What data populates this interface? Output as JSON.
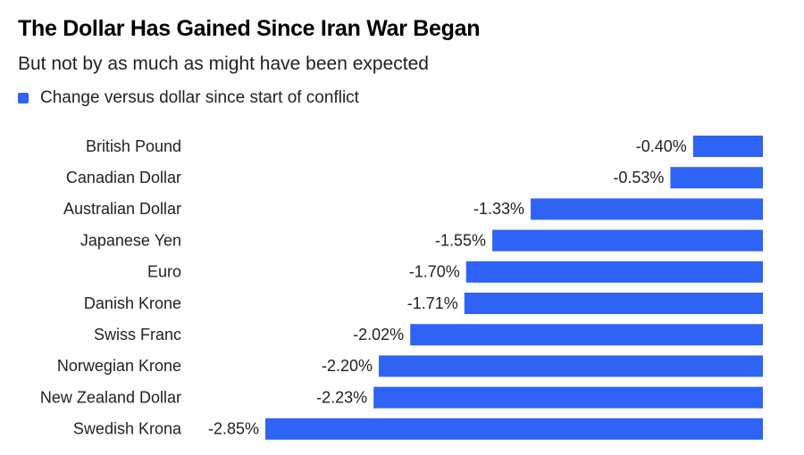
{
  "chart_data": {
    "type": "bar",
    "orientation": "horizontal",
    "title": "The Dollar Has Gained Since Iran War Began",
    "subtitle": "But not by as much as might have been expected",
    "legend": {
      "label": "Change versus dollar since start of conflict",
      "color": "#2f63f6",
      "placement": "top-left"
    },
    "categories": [
      "British Pound",
      "Canadian Dollar",
      "Australian Dollar",
      "Japanese Yen",
      "Euro",
      "Danish Krone",
      "Swiss Franc",
      "Norwegian Krone",
      "New Zealand Dollar",
      "Swedish Krona"
    ],
    "values": [
      -0.4,
      -0.53,
      -1.33,
      -1.55,
      -1.7,
      -1.71,
      -2.02,
      -2.2,
      -2.23,
      -2.85
    ],
    "value_labels": [
      "-0.40%",
      "-0.53%",
      "-1.33%",
      "-1.55%",
      "-1.70%",
      "-1.71%",
      "-2.02%",
      "-2.20%",
      "-2.23%",
      "-2.85%"
    ],
    "xlim": [
      -2.85,
      0
    ],
    "grid": false,
    "bar_color": "#2f63f6"
  }
}
